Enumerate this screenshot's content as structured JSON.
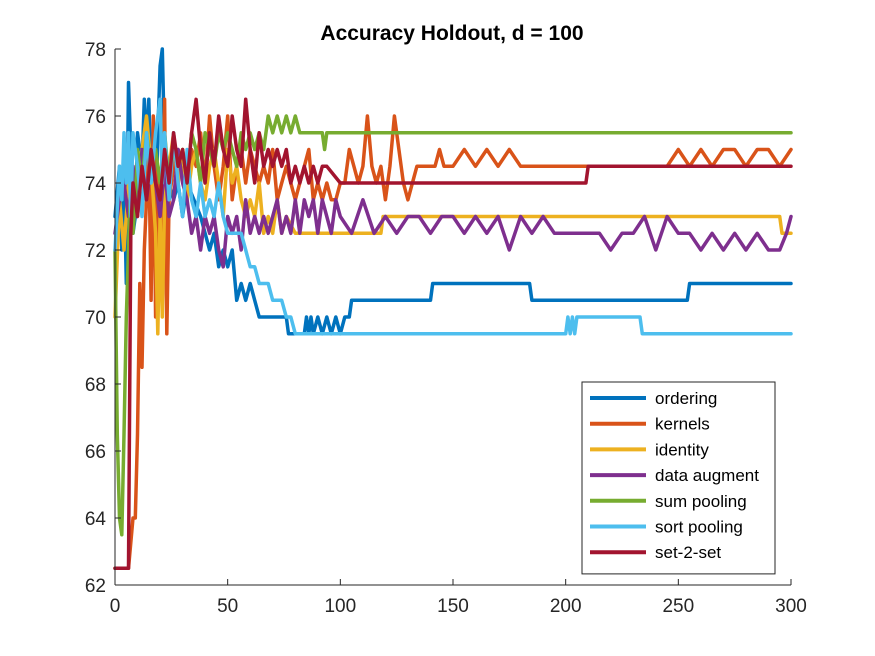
{
  "chart_data": {
    "type": "line",
    "title": "Accuracy Holdout, d = 100",
    "xlabel": "",
    "ylabel": "",
    "xlim": [
      0,
      300
    ],
    "ylim": [
      62,
      78
    ],
    "xticks": [
      0,
      50,
      100,
      150,
      200,
      250,
      300
    ],
    "yticks": [
      62,
      64,
      66,
      68,
      70,
      72,
      74,
      76,
      78
    ],
    "grid": false,
    "legend": "bottom-right",
    "series": [
      {
        "name": "ordering",
        "color": "#0072BD",
        "x": [
          0,
          2,
          3,
          4,
          5,
          6,
          7,
          8,
          9,
          10,
          12,
          13,
          14,
          15,
          16,
          17,
          18,
          19,
          20,
          21,
          22,
          24,
          26,
          28,
          30,
          32,
          35,
          38,
          40,
          42,
          44,
          46,
          48,
          50,
          52,
          54,
          56,
          58,
          60,
          62,
          64,
          66,
          68,
          70,
          72,
          76,
          77,
          80,
          84,
          85,
          86,
          87,
          88,
          90,
          92,
          94,
          96,
          98,
          100,
          102,
          104,
          105,
          106,
          140,
          141,
          142,
          184,
          185,
          254,
          255,
          256,
          300
        ],
        "y": [
          73,
          74.5,
          72,
          74.5,
          71,
          77,
          75,
          72.5,
          73,
          75.5,
          74.5,
          76.5,
          75,
          76.5,
          74,
          73.5,
          72.5,
          75.5,
          77.5,
          78,
          75,
          74,
          73.5,
          74,
          73,
          74,
          73.5,
          73,
          72.5,
          72,
          72.5,
          71.5,
          72,
          71.5,
          72,
          70.5,
          71,
          70.5,
          71,
          70.5,
          70,
          70,
          70,
          70,
          70,
          70,
          69.5,
          69.5,
          69.5,
          70,
          69.5,
          70,
          69.5,
          70,
          69.5,
          70,
          69.5,
          70,
          69.5,
          70,
          70,
          70.5,
          70.5,
          70.5,
          71,
          71,
          71,
          70.5,
          70.5,
          71,
          71,
          71
        ]
      },
      {
        "name": "kernels",
        "color": "#D95319",
        "x": [
          0,
          2,
          4,
          6,
          8,
          9,
          10,
          11,
          12,
          13,
          14,
          15,
          16,
          17,
          18,
          19,
          20,
          21,
          22,
          23,
          24,
          26,
          28,
          30,
          32,
          34,
          36,
          38,
          40,
          42,
          44,
          46,
          48,
          50,
          52,
          54,
          56,
          58,
          60,
          62,
          64,
          66,
          68,
          70,
          72,
          74,
          76,
          78,
          80,
          82,
          84,
          86,
          88,
          90,
          92,
          94,
          96,
          98,
          100,
          102,
          104,
          106,
          108,
          110,
          112,
          114,
          116,
          118,
          120,
          122,
          124,
          126,
          128,
          130,
          132,
          134,
          136,
          138,
          140,
          142,
          144,
          146,
          150,
          155,
          160,
          165,
          170,
          175,
          180,
          190,
          200,
          210,
          220,
          230,
          240,
          245,
          250,
          255,
          260,
          265,
          270,
          275,
          280,
          285,
          290,
          295,
          300
        ],
        "y": [
          62.5,
          62.5,
          62.5,
          62.5,
          64,
          64,
          66.5,
          71,
          68.5,
          72,
          73.5,
          75,
          70.5,
          76,
          70,
          74.5,
          73,
          72.5,
          76.5,
          69.5,
          73.5,
          74.5,
          75,
          74.5,
          74,
          75,
          74.5,
          75.5,
          74,
          76,
          74.5,
          73.5,
          74.5,
          76,
          73.5,
          74.5,
          75,
          74,
          75,
          74.5,
          74,
          74.5,
          74,
          75,
          73.5,
          74,
          74.5,
          74,
          73.5,
          74,
          74.5,
          75,
          73.5,
          74,
          73.5,
          74,
          73.5,
          73.5,
          74,
          74,
          75,
          74.5,
          74,
          74.5,
          76,
          74.5,
          74,
          74.5,
          73.5,
          74.5,
          76,
          75,
          74,
          73.5,
          74,
          74.5,
          74.5,
          74.5,
          74.5,
          74.5,
          75,
          74.5,
          74.5,
          75,
          74.5,
          75,
          74.5,
          75,
          74.5,
          74.5,
          74.5,
          74.5,
          74.5,
          74.5,
          74.5,
          74.5,
          75,
          74.5,
          75,
          74.5,
          75,
          75,
          74.5,
          75,
          75,
          74.5,
          75
        ]
      },
      {
        "name": "identity",
        "color": "#EDB120",
        "x": [
          0,
          2,
          4,
          6,
          8,
          10,
          12,
          14,
          16,
          18,
          19,
          20,
          21,
          22,
          24,
          26,
          28,
          30,
          32,
          34,
          36,
          38,
          40,
          42,
          44,
          46,
          48,
          50,
          52,
          54,
          56,
          58,
          60,
          62,
          64,
          66,
          68,
          70,
          72,
          74,
          76,
          80,
          90,
          100,
          105,
          110,
          115,
          118,
          119,
          120,
          130,
          150,
          200,
          250,
          295,
          296,
          300
        ],
        "y": [
          70,
          73.5,
          72,
          74,
          73,
          74.5,
          75,
          76,
          74.5,
          72.5,
          69.5,
          73,
          70,
          73.5,
          74.5,
          75.5,
          74,
          75,
          73.5,
          74.5,
          75,
          74,
          73.5,
          74.5,
          75,
          74,
          73,
          75,
          74,
          74.5,
          73.5,
          73,
          73.5,
          73,
          74,
          72.5,
          73,
          72.5,
          73.5,
          72.5,
          73,
          72.5,
          72.5,
          72.5,
          72.5,
          72.5,
          72.5,
          72.5,
          73,
          73,
          73,
          73,
          73,
          73,
          73,
          72.5,
          72.5
        ]
      },
      {
        "name": "data augment",
        "color": "#7E2F8E",
        "x": [
          0,
          2,
          4,
          6,
          8,
          10,
          12,
          14,
          16,
          18,
          20,
          22,
          24,
          26,
          28,
          30,
          32,
          34,
          36,
          38,
          40,
          42,
          44,
          46,
          48,
          50,
          52,
          54,
          56,
          58,
          60,
          62,
          64,
          66,
          68,
          70,
          72,
          74,
          76,
          78,
          80,
          82,
          84,
          86,
          88,
          90,
          92,
          94,
          96,
          98,
          100,
          105,
          110,
          115,
          120,
          125,
          130,
          135,
          140,
          145,
          150,
          155,
          160,
          165,
          170,
          175,
          180,
          185,
          190,
          195,
          200,
          205,
          210,
          215,
          220,
          225,
          230,
          235,
          240,
          245,
          250,
          255,
          260,
          265,
          270,
          275,
          280,
          285,
          290,
          295,
          298,
          300
        ],
        "y": [
          72.5,
          73.5,
          74,
          73,
          74.5,
          73,
          75,
          73.5,
          74.5,
          74,
          73,
          74.5,
          73,
          73.5,
          75,
          74,
          73.5,
          72.5,
          73,
          72,
          73,
          72.5,
          73,
          72,
          71.5,
          73,
          72.5,
          73,
          72,
          73.5,
          72.5,
          73,
          72.5,
          73,
          72.5,
          73,
          73.5,
          72.5,
          73,
          72.5,
          73.5,
          72.5,
          73.5,
          73,
          73.5,
          72.5,
          73.5,
          73,
          72.5,
          73.5,
          73,
          72.5,
          73.5,
          72.5,
          73,
          72.5,
          73,
          73,
          72.5,
          73,
          73,
          72.5,
          73,
          72.5,
          73,
          72,
          73,
          72.5,
          73,
          72.5,
          72.5,
          72.5,
          72.5,
          72.5,
          72,
          72.5,
          72.5,
          73,
          72,
          73,
          72.5,
          72.5,
          72,
          72.5,
          72,
          72.5,
          72,
          72.5,
          72,
          72,
          72.5,
          73
        ]
      },
      {
        "name": "sum pooling",
        "color": "#77AC30",
        "x": [
          0,
          1,
          2,
          3,
          4,
          5,
          6,
          7,
          8,
          9,
          10,
          12,
          14,
          16,
          18,
          20,
          22,
          24,
          26,
          28,
          30,
          32,
          34,
          36,
          38,
          40,
          42,
          44,
          46,
          48,
          50,
          52,
          54,
          56,
          58,
          60,
          62,
          64,
          66,
          68,
          70,
          72,
          74,
          76,
          78,
          80,
          82,
          84,
          86,
          88,
          90,
          92,
          93,
          94,
          100,
          150,
          200,
          250,
          300
        ],
        "y": [
          72,
          66.5,
          64,
          63.5,
          66.5,
          70,
          72,
          74,
          72.5,
          73.5,
          75,
          74,
          75.5,
          74.5,
          75,
          74,
          75.5,
          74,
          75,
          74.5,
          75,
          74,
          75.5,
          75,
          74,
          75.5,
          75,
          74.5,
          75.5,
          75,
          75.5,
          75,
          74.5,
          75.5,
          75,
          75.5,
          75,
          75.5,
          75,
          76,
          75.5,
          76,
          75.5,
          76,
          75.5,
          76,
          75.5,
          75.5,
          75.5,
          75.5,
          75.5,
          75.5,
          75,
          75.5,
          75.5,
          75.5,
          75.5,
          75.5,
          75.5
        ]
      },
      {
        "name": "sort pooling",
        "color": "#4DBEEE",
        "x": [
          0,
          2,
          3,
          4,
          5,
          6,
          7,
          8,
          10,
          12,
          14,
          16,
          18,
          19,
          20,
          21,
          22,
          24,
          26,
          28,
          30,
          32,
          34,
          36,
          38,
          40,
          42,
          44,
          46,
          48,
          50,
          52,
          54,
          56,
          58,
          60,
          62,
          64,
          66,
          68,
          70,
          72,
          74,
          76,
          78,
          80,
          90,
          100,
          150,
          200,
          201,
          202,
          203,
          204,
          205,
          206,
          233,
          234,
          300
        ],
        "y": [
          72,
          74.5,
          73.5,
          75.5,
          74,
          75.5,
          73,
          75.5,
          74.5,
          73,
          75.5,
          74,
          75.5,
          76,
          76.5,
          74,
          75.5,
          73.5,
          75.5,
          74,
          73,
          75,
          73.5,
          73,
          74,
          73,
          73.5,
          73,
          74,
          73,
          72.5,
          72.5,
          72.5,
          72.5,
          72,
          71.5,
          71.5,
          71,
          71,
          71,
          70.5,
          70.5,
          70.5,
          70,
          70,
          69.5,
          69.5,
          69.5,
          69.5,
          69.5,
          70,
          69.5,
          70,
          69.5,
          70,
          70,
          70,
          69.5,
          69.5
        ]
      },
      {
        "name": "set-2-set",
        "color": "#A2142F",
        "x": [
          0,
          2,
          4,
          6,
          7,
          8,
          10,
          12,
          14,
          16,
          18,
          20,
          22,
          24,
          26,
          28,
          30,
          32,
          34,
          36,
          38,
          40,
          42,
          44,
          46,
          48,
          50,
          52,
          54,
          56,
          58,
          60,
          62,
          64,
          66,
          68,
          70,
          72,
          74,
          76,
          78,
          80,
          82,
          84,
          86,
          88,
          90,
          92,
          94,
          100,
          105,
          150,
          209,
          210,
          300
        ],
        "y": [
          62.5,
          62.5,
          62.5,
          62.5,
          72.5,
          74,
          73,
          74.5,
          73.5,
          75,
          74,
          73.5,
          75,
          74,
          75.5,
          74.5,
          75,
          74,
          75.5,
          76.5,
          75,
          74,
          75.5,
          74.5,
          76,
          75,
          74.5,
          76,
          75,
          74.5,
          76.5,
          75,
          74,
          75.5,
          74.5,
          75,
          74.5,
          75,
          74.5,
          75,
          74,
          74.5,
          74,
          74.5,
          74,
          74.5,
          74,
          74.5,
          74.5,
          74,
          74,
          74,
          74,
          74.5,
          74.5
        ]
      }
    ]
  }
}
